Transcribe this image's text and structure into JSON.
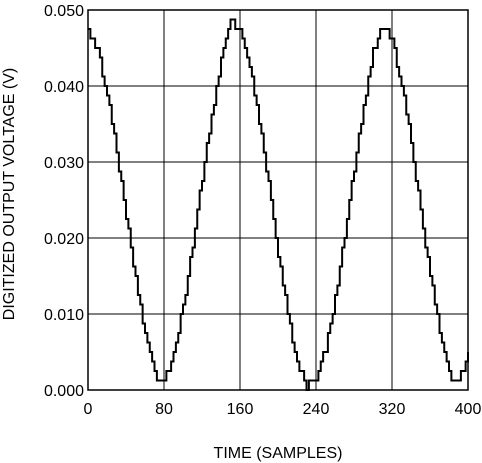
{
  "chart_data": {
    "type": "line",
    "title": "",
    "xlabel": "TIME (SAMPLES)",
    "ylabel": "DIGITIZED OUTPUT VOLTAGE (V)",
    "xlim": [
      0,
      400
    ],
    "ylim": [
      0,
      0.05
    ],
    "x_ticks": [
      "0",
      "80",
      "160",
      "240",
      "320",
      "400"
    ],
    "y_ticks": [
      "0.000",
      "0.010",
      "0.020",
      "0.030",
      "0.040",
      "0.050"
    ],
    "grid": true,
    "legend": "none",
    "line_color": "#000000",
    "series": [
      {
        "x": [
          0,
          10,
          20,
          30,
          40,
          50,
          60,
          70,
          80,
          90,
          100,
          110,
          120,
          130,
          140,
          150,
          160,
          170,
          180,
          190,
          200,
          210,
          220,
          230,
          240,
          250,
          260,
          270,
          280,
          290,
          300,
          310,
          320,
          330,
          340,
          350,
          360,
          370,
          380,
          390,
          400
        ],
        "values": [
          0.047,
          0.0445,
          0.039,
          0.0315,
          0.023,
          0.0145,
          0.007,
          0.002,
          0.001,
          0.0045,
          0.011,
          0.019,
          0.028,
          0.036,
          0.0435,
          0.0485,
          0.0475,
          0.043,
          0.0355,
          0.027,
          0.018,
          0.01,
          0.0035,
          0.0005,
          0.0015,
          0.0055,
          0.012,
          0.0205,
          0.029,
          0.0375,
          0.0445,
          0.048,
          0.046,
          0.04,
          0.0325,
          0.0235,
          0.015,
          0.0075,
          0.002,
          0.001,
          0.0045
        ]
      }
    ]
  }
}
